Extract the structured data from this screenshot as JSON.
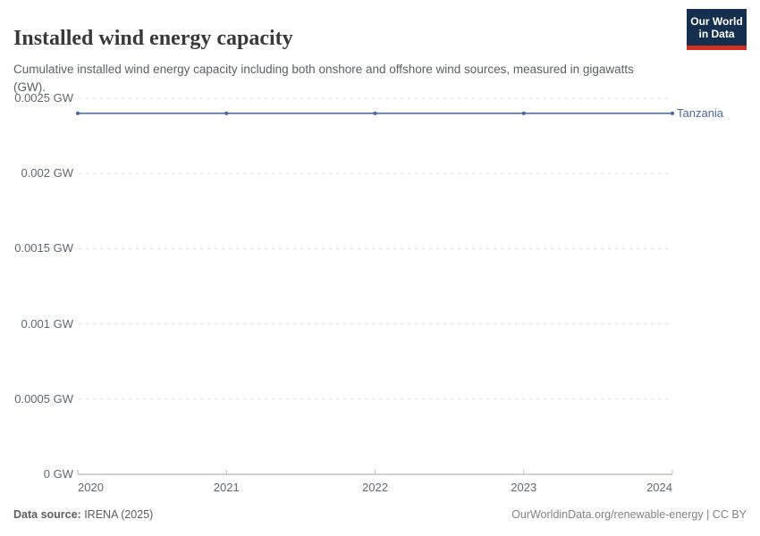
{
  "header": {
    "title": "Installed wind energy capacity",
    "subtitle": "Cumulative installed wind energy capacity including both onshore and offshore wind sources, measured in gigawatts (GW).",
    "logo": {
      "line1": "Our World",
      "line2": "in Data"
    }
  },
  "chart_data": {
    "type": "line",
    "title": "Installed wind energy capacity",
    "x": [
      2020,
      2021,
      2022,
      2023,
      2024
    ],
    "series": [
      {
        "name": "Tanzania",
        "values": [
          0.0024,
          0.0024,
          0.0024,
          0.0024,
          0.0024
        ],
        "color": "#4c6a9c"
      }
    ],
    "unit": "GW",
    "xlabel": "",
    "ylabel": "",
    "ylim": [
      0,
      0.0025
    ],
    "yticks": [
      {
        "value": 0,
        "label": "0 GW"
      },
      {
        "value": 0.0005,
        "label": "0.0005 GW"
      },
      {
        "value": 0.001,
        "label": "0.001 GW"
      },
      {
        "value": 0.0015,
        "label": "0.0015 GW"
      },
      {
        "value": 0.002,
        "label": "0.002 GW"
      },
      {
        "value": 0.0025,
        "label": "0.0025 GW"
      }
    ],
    "xticks": [
      "2020",
      "2021",
      "2022",
      "2023",
      "2024"
    ],
    "grid": "horizontal-dashed",
    "legend_position": "right-of-line"
  },
  "colors": {
    "line": "#5d7ca9",
    "marker": "#4c6a9c",
    "entity_label": "#4c6a9c",
    "gridline": "#dcdcdc",
    "axis": "#a3a3a3",
    "logo_bg": "#14304e",
    "logo_accent": "#d4301f"
  },
  "footer": {
    "data_source_label": "Data source:",
    "data_source_value": " IRENA (2025)",
    "credit": "OurWorldinData.org/renewable-energy | CC BY"
  }
}
